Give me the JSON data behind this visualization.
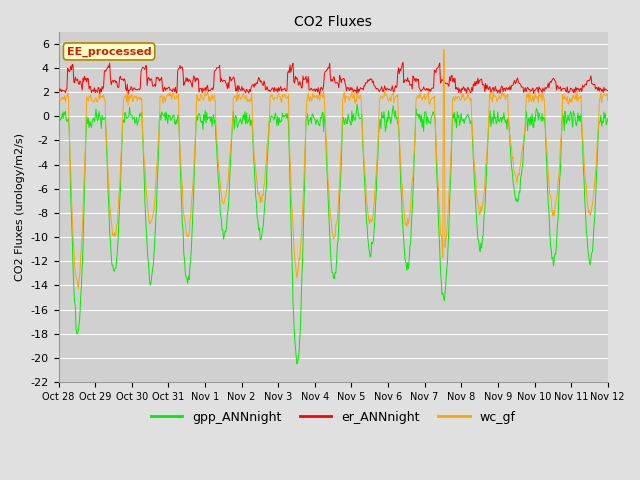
{
  "title": "CO2 Fluxes",
  "ylabel": "CO2 Fluxes (urology/m2/s)",
  "ylim": [
    -22,
    7
  ],
  "yticks": [
    -22,
    -20,
    -18,
    -16,
    -14,
    -12,
    -10,
    -8,
    -6,
    -4,
    -2,
    0,
    2,
    4,
    6
  ],
  "x_labels": [
    "Oct 28",
    "Oct 29",
    "Oct 30",
    "Oct 31",
    "Nov 1",
    "Nov 2",
    "Nov 3",
    "Nov 4",
    "Nov 5",
    "Nov 6",
    "Nov 7",
    "Nov 8",
    "Nov 9",
    "Nov 10",
    "Nov 11",
    "Nov 12"
  ],
  "n_days": 15,
  "points_per_day": 48,
  "fig_bg_color": "#e0e0e0",
  "plot_bg_color": "#d0d0d0",
  "gpp_color": "#00ee00",
  "er_color": "#ff0000",
  "wc_color": "#ffa500",
  "annotation_text": "EE_processed",
  "annotation_bg": "#ffffcc",
  "annotation_border": "#aa8800",
  "linewidth": 0.7,
  "gpp_amplitudes": [
    18,
    13,
    13.5,
    14,
    10,
    10,
    20.5,
    13.5,
    11.5,
    12.5,
    15,
    11,
    7,
    12,
    12
  ],
  "wc_amplitudes": [
    14,
    10,
    9,
    10,
    7,
    7,
    13,
    10,
    9,
    9,
    11,
    8,
    5,
    8,
    8
  ]
}
